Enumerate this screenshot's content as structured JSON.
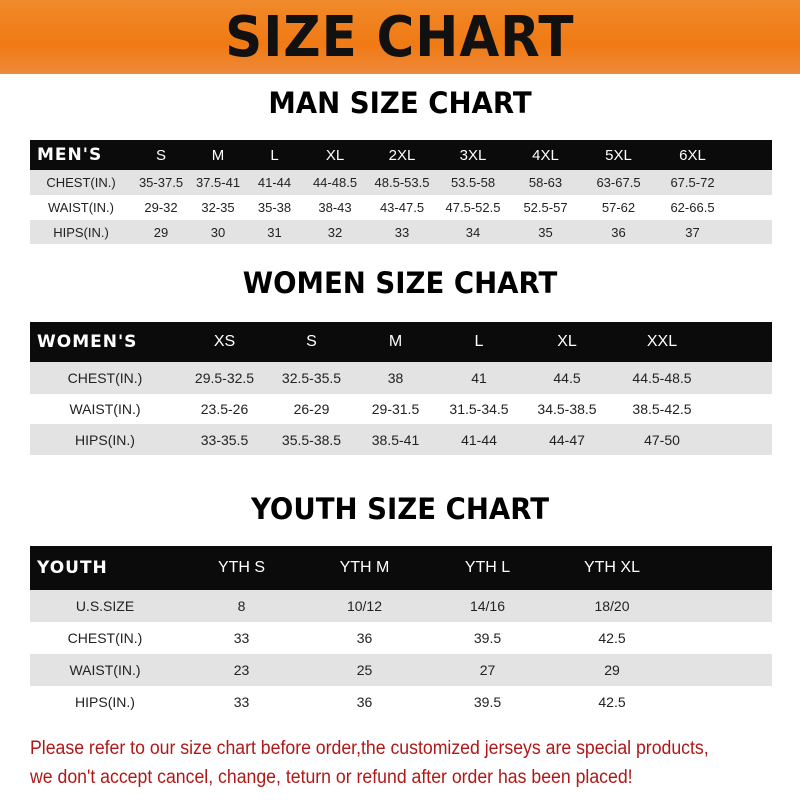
{
  "banner_title": "SIZE CHART",
  "men": {
    "title": "MAN SIZE CHART",
    "header": [
      "MEN'S",
      "S",
      "M",
      "L",
      "XL",
      "2XL",
      "3XL",
      "4XL",
      "5XL",
      "6XL"
    ],
    "rows": [
      [
        "CHEST(IN.)",
        "35-37.5",
        "37.5-41",
        "41-44",
        "44-48.5",
        "48.5-53.5",
        "53.5-58",
        "58-63",
        "63-67.5",
        "67.5-72"
      ],
      [
        "WAIST(IN.)",
        "29-32",
        "32-35",
        "35-38",
        "38-43",
        "43-47.5",
        "47.5-52.5",
        "52.5-57",
        "57-62",
        "62-66.5"
      ],
      [
        "HIPS(IN.)",
        "29",
        "30",
        "31",
        "32",
        "33",
        "34",
        "35",
        "36",
        "37"
      ]
    ]
  },
  "women": {
    "title": "WOMEN SIZE CHART",
    "header": [
      "WOMEN'S",
      "XS",
      "S",
      "M",
      "L",
      "XL",
      "XXL"
    ],
    "rows": [
      [
        "CHEST(IN.)",
        "29.5-32.5",
        "32.5-35.5",
        "38",
        "41",
        "44.5",
        "44.5-48.5"
      ],
      [
        "WAIST(IN.)",
        "23.5-26",
        "26-29",
        "29-31.5",
        "31.5-34.5",
        "34.5-38.5",
        "38.5-42.5"
      ],
      [
        "HIPS(IN.)",
        "33-35.5",
        "35.5-38.5",
        "38.5-41",
        "41-44",
        "44-47",
        "47-50"
      ]
    ]
  },
  "youth": {
    "title": "YOUTH SIZE CHART",
    "header": [
      "YOUTH",
      "YTH S",
      "YTH M",
      "YTH L",
      "YTH XL"
    ],
    "rows": [
      [
        "U.S.SIZE",
        "8",
        "10/12",
        "14/16",
        "18/20"
      ],
      [
        "CHEST(IN.)",
        "33",
        "36",
        "39.5",
        "42.5"
      ],
      [
        "WAIST(IN.)",
        "23",
        "25",
        "27",
        "29"
      ],
      [
        "HIPS(IN.)",
        "33",
        "36",
        "39.5",
        "42.5"
      ]
    ]
  },
  "note": [
    "Please refer to our size chart before order,the customized jerseys are special products,",
    "we don't accept cancel, change, teturn or refund after order has been placed!"
  ],
  "colors": {
    "banner": "#f07a14",
    "header_row": "#0b0b0b",
    "stripe": "#e3e3e3",
    "note": "#b01818"
  }
}
